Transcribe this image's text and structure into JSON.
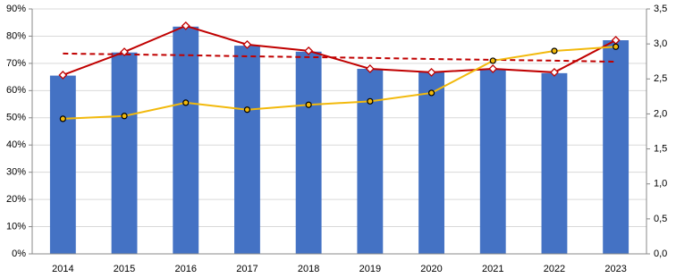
{
  "chart_data": {
    "type": "bar",
    "categories": [
      "2014",
      "2015",
      "2016",
      "2017",
      "2018",
      "2019",
      "2020",
      "2021",
      "2022",
      "2023"
    ],
    "series": [
      {
        "type": "bar",
        "color": "#4472c4",
        "values": [
          65.5,
          74,
          83.5,
          76.5,
          74.3,
          68,
          67,
          68,
          66.4,
          78.5
        ]
      },
      {
        "type": "line",
        "color": "#c00000",
        "marker": "diamond",
        "values": [
          65.7,
          74.2,
          83.8,
          76.9,
          74.6,
          68,
          66.7,
          68,
          66.7,
          78.5
        ]
      },
      {
        "type": "line",
        "color": "#c00000",
        "dash": true,
        "values": [
          73.6,
          73.3,
          73.0,
          72.6,
          72.3,
          72.0,
          71.6,
          71.3,
          71.0,
          70.6
        ]
      },
      {
        "type": "line",
        "color": "#f2b90c",
        "marker": "circle",
        "axis": "y2",
        "values": [
          1.93,
          1.97,
          2.16,
          2.06,
          2.13,
          2.18,
          2.3,
          2.76,
          2.9,
          2.96
        ]
      }
    ],
    "ylim": [
      0,
      90
    ],
    "yticks": [
      {
        "value": 0,
        "label": "0%"
      },
      {
        "value": 10,
        "label": "10%"
      },
      {
        "value": 20,
        "label": "20%"
      },
      {
        "value": 30,
        "label": "30%"
      },
      {
        "value": 40,
        "label": "40%"
      },
      {
        "value": 50,
        "label": "50%"
      },
      {
        "value": 60,
        "label": "60%"
      },
      {
        "value": 70,
        "label": "70%"
      },
      {
        "value": 80,
        "label": "80%"
      },
      {
        "value": 90,
        "label": "90%"
      }
    ],
    "y2lim": [
      0,
      3.5
    ],
    "y2ticks": [
      {
        "value": 0,
        "label": "0,0"
      },
      {
        "value": 0.5,
        "label": "0,5"
      },
      {
        "value": 1,
        "label": "1,0"
      },
      {
        "value": 1.5,
        "label": "1,5"
      },
      {
        "value": 2,
        "label": "2,0"
      },
      {
        "value": 2.5,
        "label": "2,5"
      },
      {
        "value": 3,
        "label": "3,0"
      },
      {
        "value": 3.5,
        "label": "3,5"
      }
    ],
    "grid": true
  }
}
